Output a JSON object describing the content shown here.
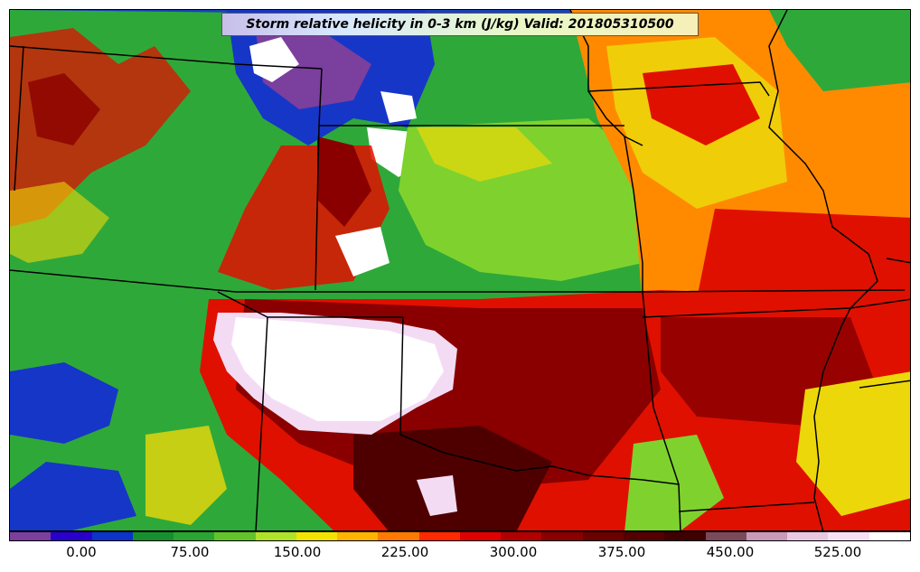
{
  "title": "Storm relative helicity in 0-3 km (J/kg) Valid: 201805310500",
  "colorbar": {
    "colors": [
      "#7b3f9e",
      "#2a00cc",
      "#0b34c8",
      "#168f2e",
      "#2aa532",
      "#62c42a",
      "#b0e22a",
      "#f2e400",
      "#ffb400",
      "#ff7a00",
      "#ff2a00",
      "#e00000",
      "#b20000",
      "#8a0000",
      "#6a0000",
      "#550000",
      "#400000",
      "#7a4a5a",
      "#c89ab8",
      "#e8c8e0",
      "#f5e0f5",
      "#ffffff"
    ],
    "tick_labels": [
      "0.00",
      "75.00",
      "150.00",
      "225.00",
      "300.00",
      "375.00",
      "450.00",
      "525.00"
    ]
  },
  "field_colors": {
    "base_green": "#2fa83a",
    "light_green": "#7fd22e",
    "blue": "#1636c8",
    "purple": "#7b3f9e",
    "yellow": "#ecd80a",
    "orange": "#ff8a00",
    "red": "#e01000",
    "dark_red": "#8a0000",
    "very_dark_red": "#4e0000",
    "pink": "#f3dcf3",
    "white": "#ffffff",
    "border": "#000000"
  }
}
